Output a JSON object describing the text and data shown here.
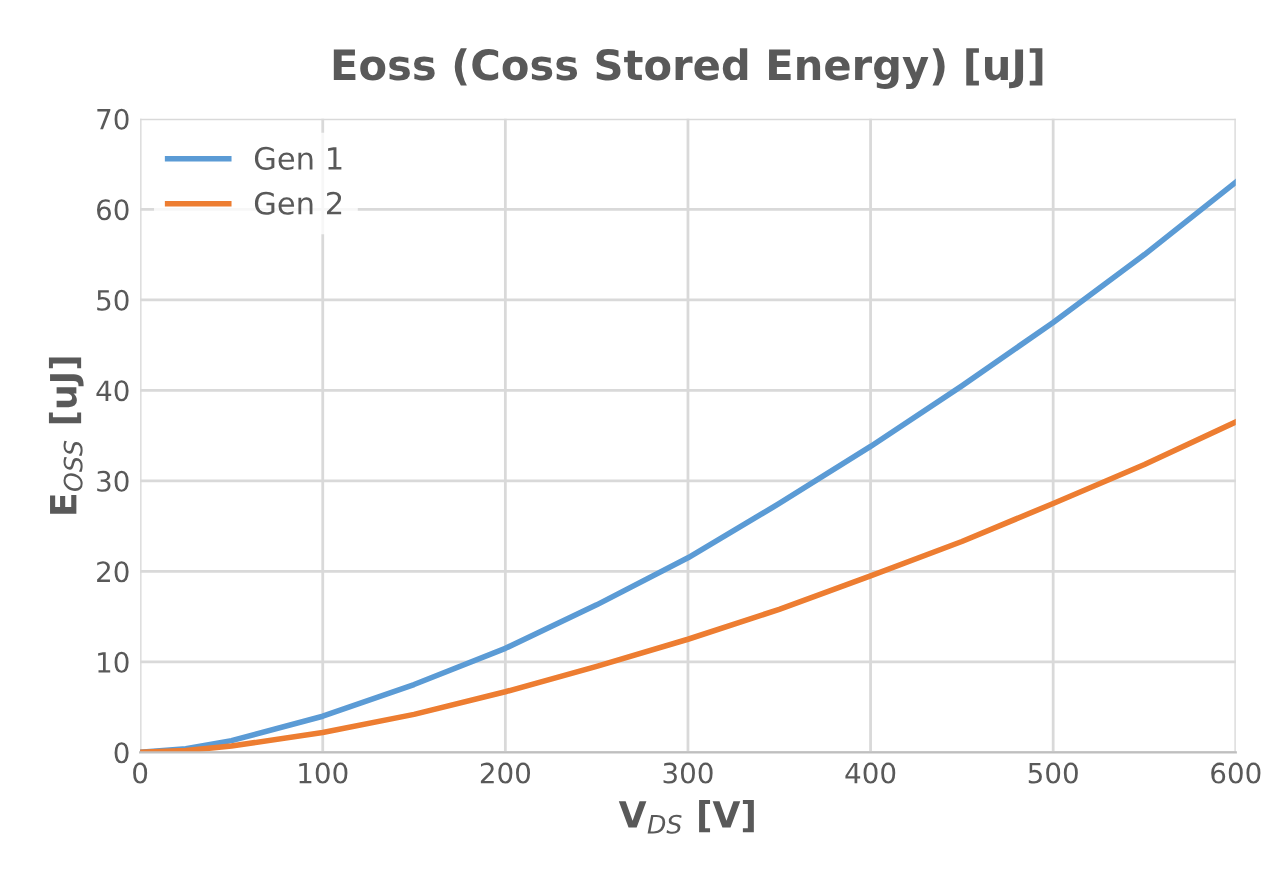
{
  "chart_data": {
    "type": "line",
    "title": "Eoss (Coss Stored Energy) [uJ]",
    "xlabel": "V$_{DS}$ [V]",
    "ylabel": "E$_{OSS}$ [uJ]",
    "x": [
      0,
      25,
      50,
      100,
      150,
      200,
      250,
      300,
      350,
      400,
      450,
      500,
      550,
      600
    ],
    "series": [
      {
        "name": "Gen 1",
        "color": "#5b9bd5",
        "values": [
          0,
          0.4,
          1.3,
          4,
          7.5,
          11.5,
          16.3,
          21.5,
          27.5,
          33.8,
          40.5,
          47.5,
          55,
          63
        ]
      },
      {
        "name": "Gen 2",
        "color": "#ed7d31",
        "values": [
          0,
          0.2,
          0.7,
          2.2,
          4.2,
          6.7,
          9.5,
          12.5,
          15.8,
          19.5,
          23.3,
          27.5,
          31.8,
          36.5
        ]
      }
    ],
    "xlim": [
      0,
      600
    ],
    "xticks": [
      0,
      100,
      200,
      300,
      400,
      500,
      600
    ],
    "ylim": [
      0,
      70
    ],
    "yticks": [
      0,
      10,
      20,
      30,
      40,
      50,
      60,
      70
    ],
    "grid": true,
    "legend": "top left",
    "marker": "none",
    "line_style": "solid"
  }
}
